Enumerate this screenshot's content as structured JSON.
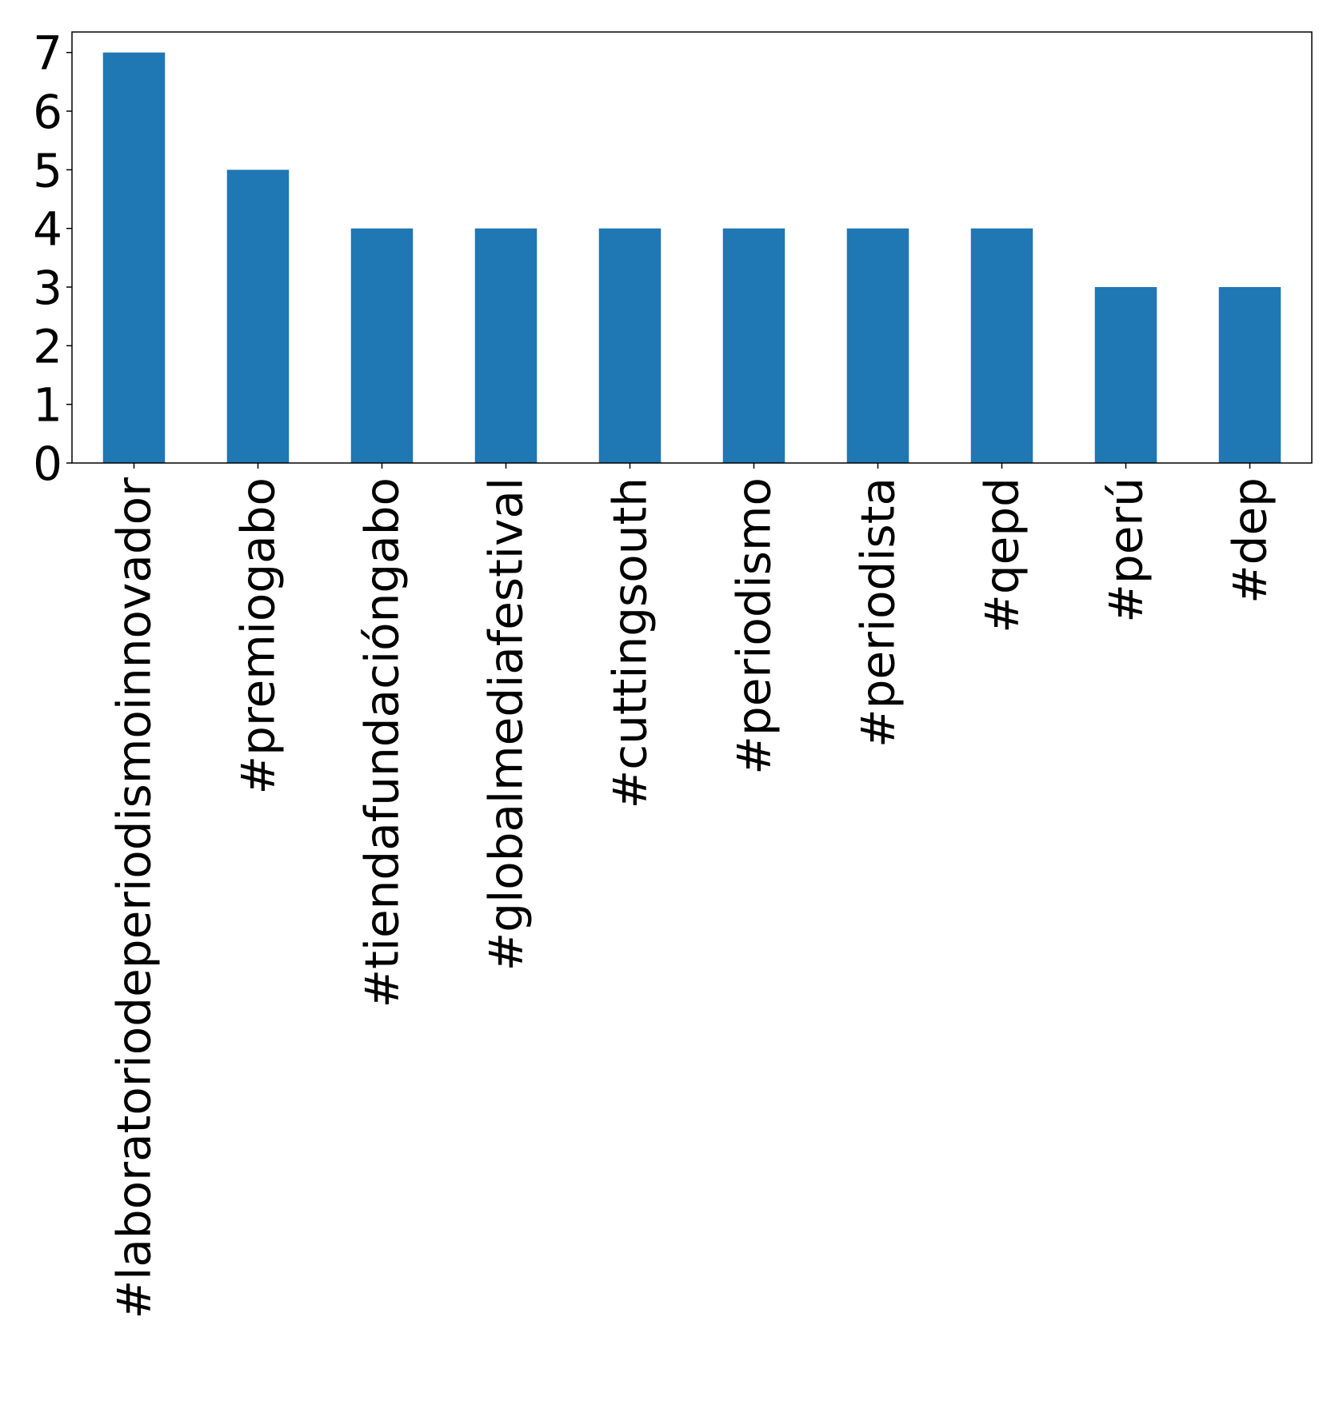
{
  "chart_data": {
    "type": "bar",
    "title": "",
    "xlabel": "",
    "ylabel": "",
    "categories": [
      "#laboratoriodeperiodismoinnovador",
      "#premiogabo",
      "#tiendafundacióngabo",
      "#globalmediafestival",
      "#cuttingsouth",
      "#periodismo",
      "#periodista",
      "#qepd",
      "#perú",
      "#dep"
    ],
    "values": [
      7,
      5,
      4,
      4,
      4,
      4,
      4,
      4,
      3,
      3
    ],
    "ylim": [
      0,
      7.35
    ],
    "yticks": [
      "0",
      "1",
      "2",
      "3",
      "4",
      "5",
      "6",
      "7"
    ],
    "bar_color": "#1f77b4",
    "grid": false,
    "legend": "none"
  }
}
